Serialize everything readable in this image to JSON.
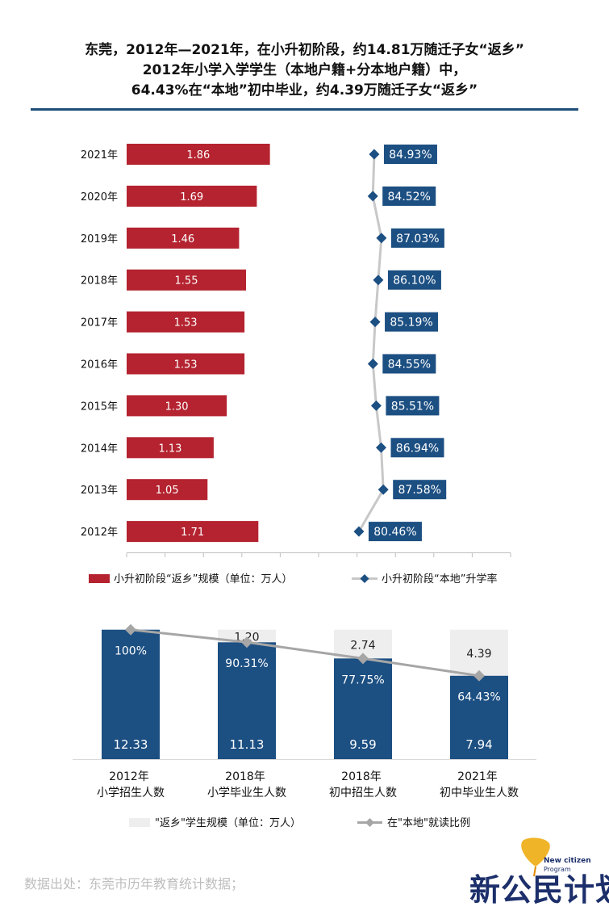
{
  "title": {
    "line1": "东莞，2012年—2021年，在小升初阶段，约14.81万随迁子女“返乡”",
    "line2": "2012年小学入学学生（本地户籍+分本地户籍）中，",
    "line3": "64.43%在“本地”初中毕业，约4.39万随迁子女“返乡”"
  },
  "chart_data": [
    {
      "type": "bar",
      "orientation": "horizontal",
      "categories": [
        "2021年",
        "2020年",
        "2019年",
        "2018年",
        "2017年",
        "2016年",
        "2015年",
        "2014年",
        "2013年",
        "2012年"
      ],
      "series": [
        {
          "name": "小升初阶段“返乡”规模（单位：万人）",
          "kind": "bar",
          "color": "#b4232f",
          "values": [
            1.86,
            1.69,
            1.46,
            1.55,
            1.53,
            1.53,
            1.3,
            1.13,
            1.05,
            1.71
          ],
          "labels": [
            "1.86",
            "1.69",
            "1.46",
            "1.55",
            "1.53",
            "1.53",
            "1.30",
            "1.13",
            "1.05",
            "1.71"
          ]
        },
        {
          "name": "小升初阶段“本地”升学率",
          "kind": "line",
          "color": "#1c4f82",
          "values": [
            84.93,
            84.52,
            87.03,
            86.1,
            85.19,
            84.55,
            85.51,
            86.94,
            87.58,
            80.46
          ],
          "labels": [
            "84.93%",
            "84.52%",
            "87.03%",
            "86.10%",
            "85.19%",
            "84.55%",
            "85.51%",
            "86.94%",
            "87.58%",
            "80.46%"
          ]
        }
      ],
      "bar_xlim": [
        0,
        5
      ],
      "line_xlim": [
        60,
        100
      ],
      "legend": {
        "position": "bottom"
      }
    },
    {
      "type": "bar",
      "stacked": true,
      "categories": [
        {
          "top": "2012年",
          "bottom": "小学招生人数"
        },
        {
          "top": "2018年",
          "bottom": "小学毕业生人数"
        },
        {
          "top": "2018年",
          "bottom": "初中招生人数"
        },
        {
          "top": "2021年",
          "bottom": "初中毕业生人数"
        }
      ],
      "series": [
        {
          "name": "",
          "kind": "bar",
          "color": "#1c4f82",
          "values": [
            12.33,
            11.13,
            9.59,
            7.94
          ],
          "labels": [
            "12.33",
            "11.13",
            "9.59",
            "7.94"
          ]
        },
        {
          "name": "\"返乡\"学生规模（单位：万人）",
          "kind": "bar",
          "color": "#eeeeee",
          "values": [
            0,
            1.2,
            2.74,
            4.39
          ],
          "labels": [
            "",
            "1.20",
            "2.74",
            "4.39"
          ]
        },
        {
          "name": "在\"本地\"就读比例",
          "kind": "line",
          "color": "#a6a6a6",
          "values": [
            100,
            90.31,
            77.75,
            64.43
          ],
          "labels": [
            "100%",
            "90.31%",
            "77.75%",
            "64.43%"
          ]
        }
      ],
      "legend": {
        "position": "bottom"
      }
    }
  ],
  "source": "数据出处：东莞市历年教育统计数据；",
  "logo": {
    "text": "新公民计划",
    "en_line1": "New citizen",
    "en_line2": "Program"
  },
  "colors": {
    "red": "#b4232f",
    "navy": "#1c4f82",
    "grey": "#a6a6a6",
    "light_grey": "#eeeeee",
    "rule": "#1f4e79"
  }
}
